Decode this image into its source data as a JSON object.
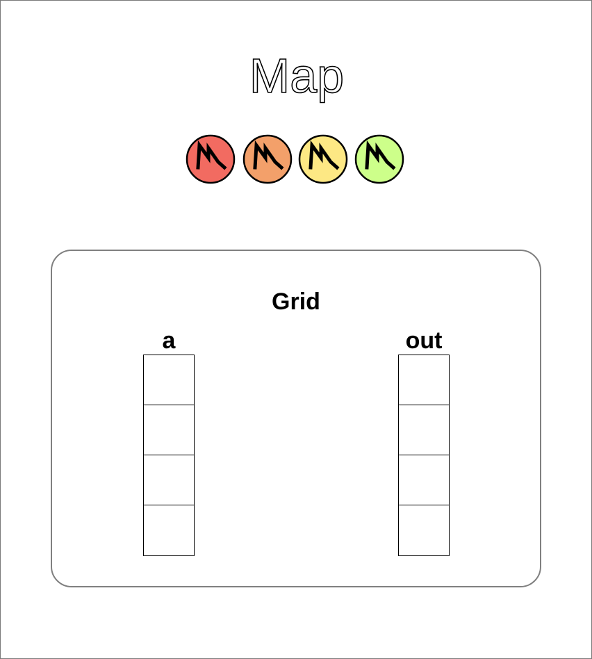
{
  "title": "Map",
  "badges": [
    {
      "name": "red",
      "color": "#f26b61"
    },
    {
      "name": "orange",
      "color": "#f3a06a"
    },
    {
      "name": "yellow",
      "color": "#fde884"
    },
    {
      "name": "green",
      "color": "#cdff8a"
    }
  ],
  "badge_icon": "lightning-m-icon",
  "grid": {
    "title": "Grid",
    "columns": [
      {
        "label": "a",
        "cells": 4
      },
      {
        "label": "out",
        "cells": 4
      }
    ]
  }
}
